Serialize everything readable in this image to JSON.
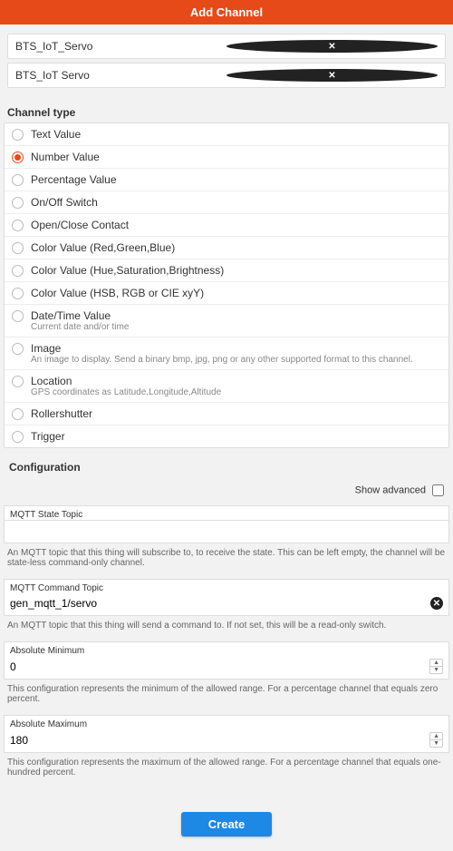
{
  "header": {
    "title": "Add Channel"
  },
  "name_fields": [
    {
      "value": "BTS_IoT_Servo"
    },
    {
      "value": "BTS_IoT Servo"
    }
  ],
  "channel_type": {
    "title": "Channel type",
    "selected_index": 1,
    "options": [
      {
        "label": "Text Value"
      },
      {
        "label": "Number Value"
      },
      {
        "label": "Percentage Value"
      },
      {
        "label": "On/Off Switch"
      },
      {
        "label": "Open/Close Contact"
      },
      {
        "label": "Color Value (Red,Green,Blue)"
      },
      {
        "label": "Color Value (Hue,Saturation,Brightness)"
      },
      {
        "label": "Color Value (HSB, RGB or CIE xyY)"
      },
      {
        "label": "Date/Time Value",
        "sub": "Current date and/or time"
      },
      {
        "label": "Image",
        "sub": "An image to display. Send a binary bmp, jpg, png or any other supported format to this channel."
      },
      {
        "label": "Location",
        "sub": "GPS coordinates as Latitude,Longitude,Altitude"
      },
      {
        "label": "Rollershutter"
      },
      {
        "label": "Trigger"
      }
    ]
  },
  "config": {
    "title": "Configuration",
    "show_advanced_label": "Show advanced",
    "show_advanced": false,
    "mqtt_state": {
      "label": "MQTT State Topic",
      "value": "",
      "help": "An MQTT topic that this thing will subscribe to, to receive the state. This can be left empty, the channel will be state-less command-only channel."
    },
    "mqtt_command": {
      "label": "MQTT Command Topic",
      "value": "gen_mqtt_1/servo",
      "help": "An MQTT topic that this thing will send a command to. If not set, this will be a read-only switch."
    },
    "abs_min": {
      "label": "Absolute Minimum",
      "value": "0",
      "help": "This configuration represents the minimum of the allowed range. For a percentage channel that equals zero percent."
    },
    "abs_max": {
      "label": "Absolute Maximum",
      "value": "180",
      "help": "This configuration represents the maximum of the allowed range. For a percentage channel that equals one-hundred percent."
    }
  },
  "create_label": "Create",
  "colors": {
    "accent": "#e64a19",
    "primary_button": "#1e88e5"
  }
}
